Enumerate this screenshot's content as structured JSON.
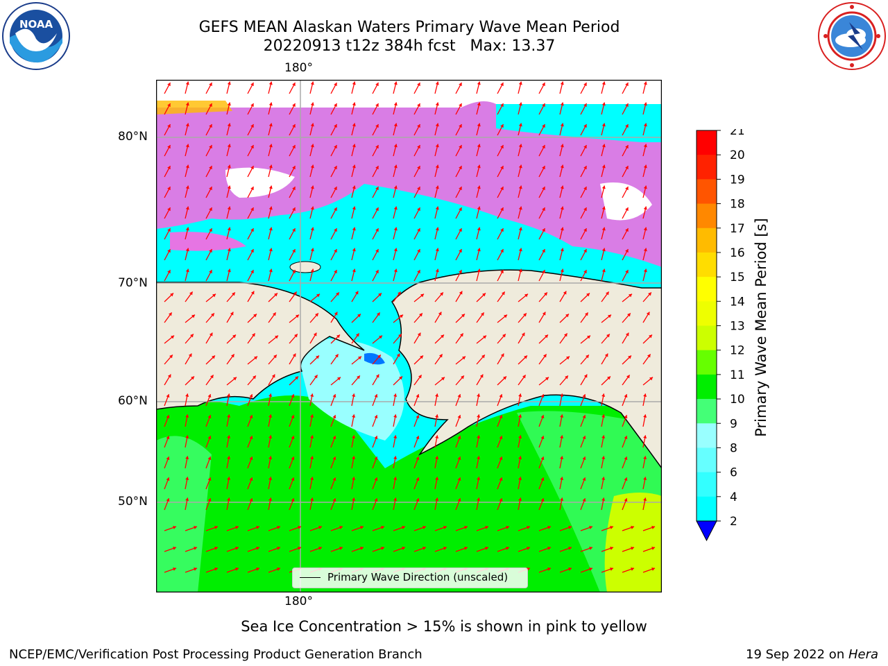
{
  "title": {
    "line1": "GEFS MEAN Alaskan Waters Primary Wave Mean Period",
    "line2": "20220913 t12z 384h fcst   Max: 13.37"
  },
  "logos": {
    "noaa": {
      "icon": "noaa-logo-icon",
      "text": "NOAA"
    },
    "nws": {
      "icon": "national-weather-service-logo-icon"
    }
  },
  "map": {
    "lon_label_top": "180°",
    "lon_label_bottom": "180°",
    "lat_labels": [
      "80°N",
      "70°N",
      "60°N",
      "50°N"
    ],
    "legend": "Primary Wave Direction (unscaled)",
    "colors": {
      "land": "#efebdc",
      "ice": "#ff66e0",
      "arrow": "#ff0000",
      "grid": "#aaaaaa"
    }
  },
  "colorbar": {
    "label": "Primary Wave Mean Period [s]",
    "ticks": [
      "21",
      "20",
      "19",
      "18",
      "17",
      "16",
      "15",
      "14",
      "13",
      "12",
      "11",
      "10",
      "9",
      "8",
      "6",
      "4",
      "2"
    ],
    "colors": [
      "#0000ff",
      "#0077ff",
      "#00ffff",
      "#33ffff",
      "#66ffff",
      "#99ffff",
      "#44ff77",
      "#00ee00",
      "#66ff00",
      "#ccff00",
      "#eeff00",
      "#ffff00",
      "#ffdd00",
      "#ffbb00",
      "#ff8800",
      "#ff5500",
      "#ff2200",
      "#ff0000"
    ]
  },
  "footer": {
    "note": "Sea Ice Concentration > 15% is shown in pink to yellow",
    "left": "NCEP/EMC/Verification Post Processing Product Generation Branch",
    "right_prefix": "19 Sep 2022 on ",
    "right_machine": "Hera"
  }
}
